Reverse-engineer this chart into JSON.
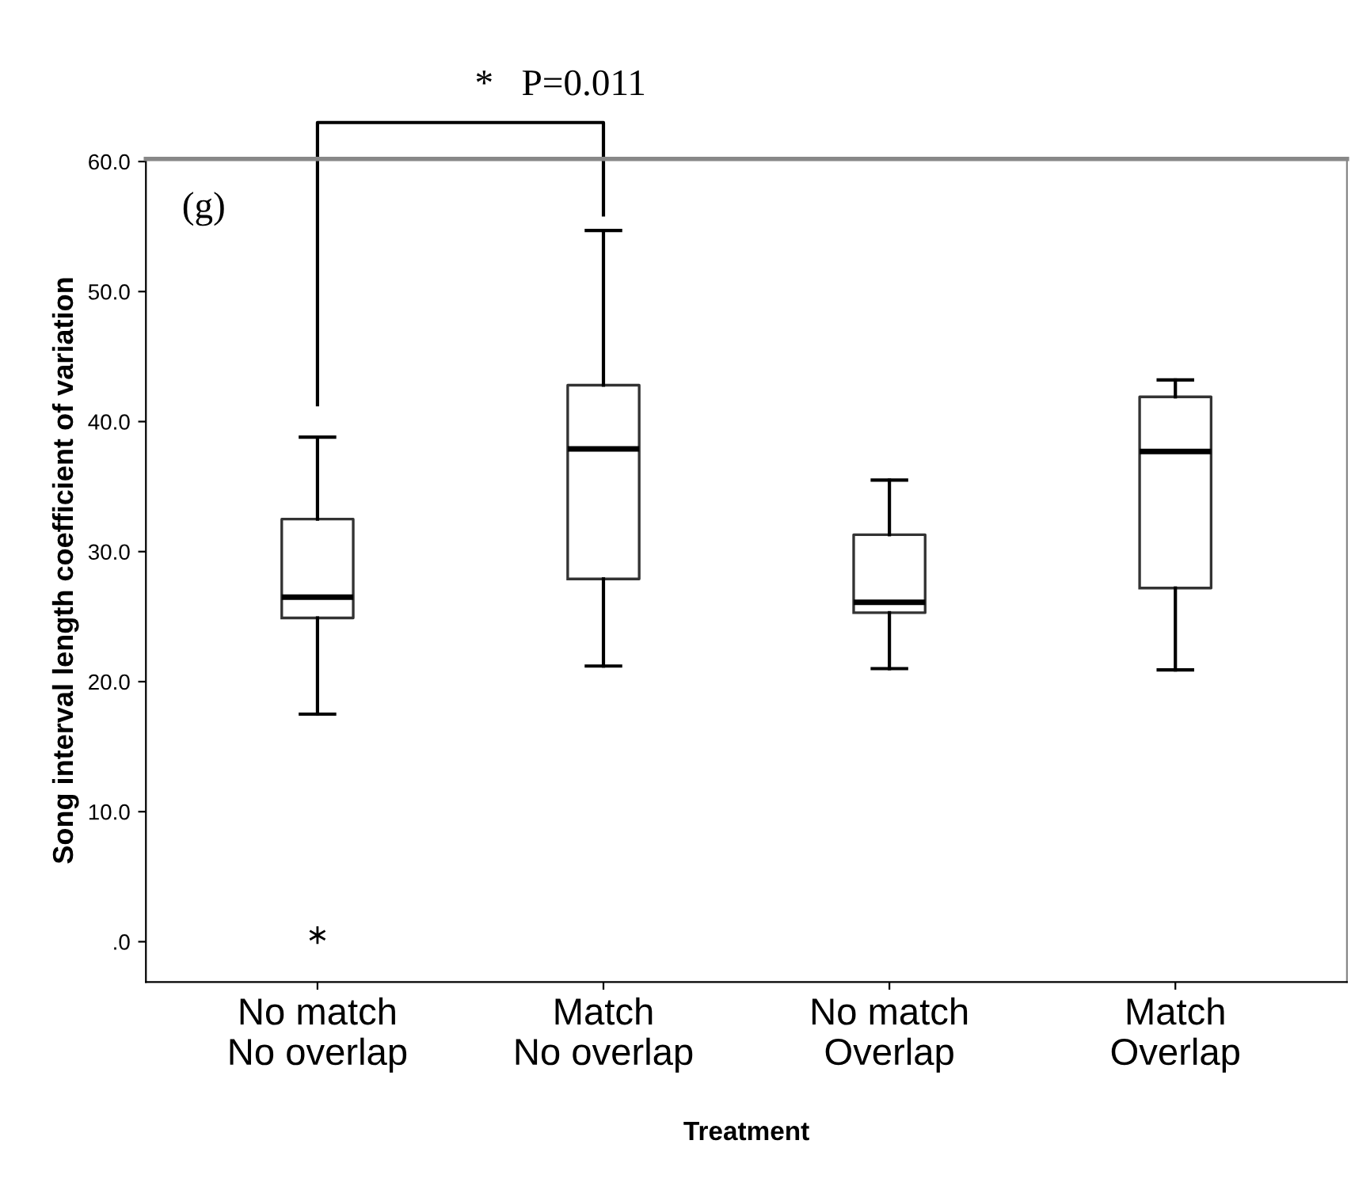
{
  "chart_data": {
    "type": "box",
    "xlabel": "Treatment",
    "ylabel": "Song interval length coefficient of variation",
    "categories": [
      "No match\nNo overlap",
      "Match\nNo overlap",
      "No match\nOverlap",
      "Match\nOverlap"
    ],
    "boxes": [
      {
        "low": 17.5,
        "q1": 24.9,
        "median": 26.5,
        "q3": 32.5,
        "high": 38.8,
        "outliers": [
          0.5
        ]
      },
      {
        "low": 21.2,
        "q1": 27.9,
        "median": 37.9,
        "q3": 42.8,
        "high": 54.7
      },
      {
        "low": 21.0,
        "q1": 25.3,
        "median": 26.1,
        "q3": 31.3,
        "high": 35.5
      },
      {
        "low": 20.9,
        "q1": 27.2,
        "median": 37.7,
        "q3": 41.9,
        "high": 43.2
      }
    ],
    "ylim": [
      -3.1,
      60.2
    ],
    "yticks": [
      {
        "value": 0,
        "label": ".0"
      },
      {
        "value": 10,
        "label": "10.0"
      },
      {
        "value": 20,
        "label": "20.0"
      },
      {
        "value": 30,
        "label": "30.0"
      },
      {
        "value": 40,
        "label": "40.0"
      },
      {
        "value": 50,
        "label": "50.0"
      },
      {
        "value": 60,
        "label": "60.0"
      }
    ],
    "grid": false,
    "annotations": [
      "(g)",
      "*   P=0.011"
    ]
  }
}
